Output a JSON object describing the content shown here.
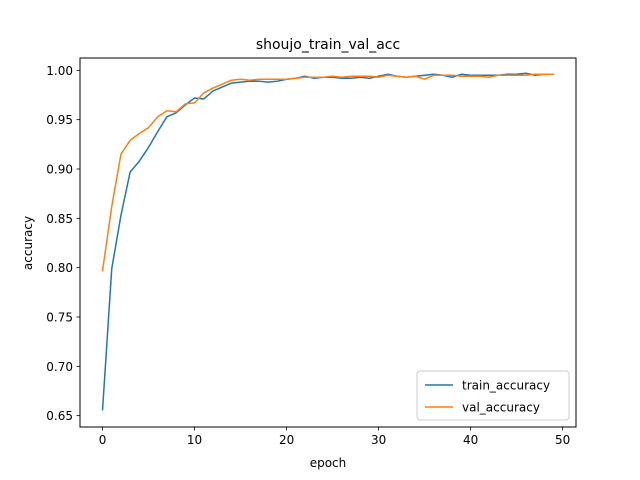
{
  "chart_data": {
    "type": "line",
    "title": "shoujo_train_val_acc",
    "xlabel": "epoch",
    "ylabel": "accuracy",
    "xlim": [
      -2.45,
      51.45
    ],
    "ylim": [
      0.6385,
      1.0125
    ],
    "xticks": [
      0,
      10,
      20,
      30,
      40,
      50
    ],
    "yticks": [
      0.65,
      0.7,
      0.75,
      0.8,
      0.85,
      0.9,
      0.95,
      1.0
    ],
    "ytick_labels": [
      "0.65",
      "0.70",
      "0.75",
      "0.80",
      "0.85",
      "0.90",
      "0.95",
      "1.00"
    ],
    "grid": false,
    "legend_position": "lower-right",
    "x": [
      0,
      1,
      2,
      3,
      4,
      5,
      6,
      7,
      8,
      9,
      10,
      11,
      12,
      13,
      14,
      15,
      16,
      17,
      18,
      19,
      20,
      21,
      22,
      23,
      24,
      25,
      26,
      27,
      28,
      29,
      30,
      31,
      32,
      33,
      34,
      35,
      36,
      37,
      38,
      39,
      40,
      41,
      42,
      43,
      44,
      45,
      46,
      47,
      48,
      49
    ],
    "series": [
      {
        "name": "train_accuracy",
        "color": "#1f77b4",
        "values": [
          0.656,
          0.799,
          0.853,
          0.897,
          0.908,
          0.922,
          0.938,
          0.953,
          0.957,
          0.965,
          0.972,
          0.971,
          0.979,
          0.983,
          0.987,
          0.988,
          0.989,
          0.989,
          0.988,
          0.989,
          0.991,
          0.992,
          0.994,
          0.992,
          0.993,
          0.993,
          0.992,
          0.992,
          0.993,
          0.992,
          0.994,
          0.996,
          0.994,
          0.993,
          0.994,
          0.995,
          0.996,
          0.995,
          0.993,
          0.996,
          0.995,
          0.995,
          0.995,
          0.995,
          0.996,
          0.996,
          0.997,
          0.995,
          0.996,
          0.996
        ]
      },
      {
        "name": "val_accuracy",
        "color": "#ff7f0e",
        "values": [
          0.797,
          0.862,
          0.915,
          0.929,
          0.936,
          0.942,
          0.953,
          0.959,
          0.958,
          0.966,
          0.967,
          0.977,
          0.982,
          0.986,
          0.99,
          0.991,
          0.99,
          0.991,
          0.991,
          0.991,
          0.991,
          0.992,
          0.993,
          0.993,
          0.993,
          0.994,
          0.993,
          0.994,
          0.994,
          0.994,
          0.993,
          0.995,
          0.994,
          0.993,
          0.994,
          0.991,
          0.995,
          0.995,
          0.995,
          0.994,
          0.994,
          0.994,
          0.993,
          0.995,
          0.995,
          0.995,
          0.995,
          0.996,
          0.996,
          0.996
        ]
      }
    ]
  }
}
